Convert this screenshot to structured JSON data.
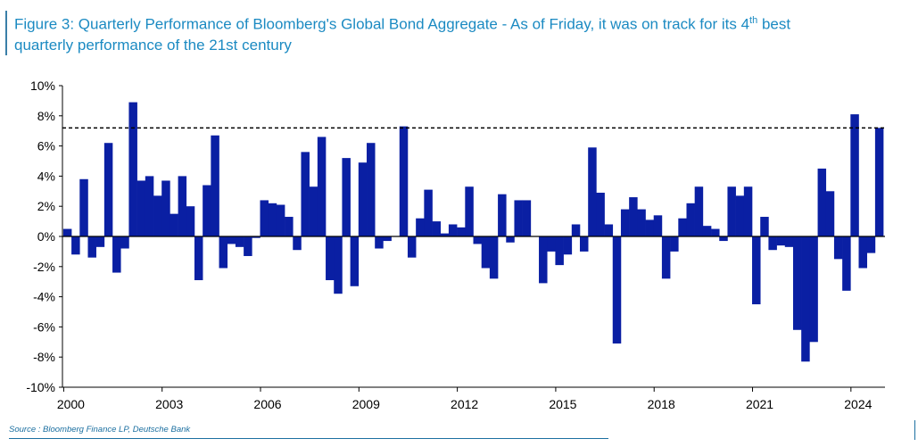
{
  "title": {
    "line1": "Figure 3: Quarterly Performance of Bloomberg's Global Bond Aggregate - As of Friday, it was on track for its 4",
    "superscript": "th",
    "line1_end": " best",
    "line2": "quarterly performance of the 21st century"
  },
  "source": "Source : Bloomberg Finance LP, Deutsche Bank",
  "colors": {
    "bar": "#0a1fa3",
    "title": "#1b8ac2",
    "axis": "#000000",
    "reference_line": "#000000"
  },
  "chart_data": {
    "type": "bar",
    "ylim": [
      -10,
      10
    ],
    "yticks": [
      -10,
      -8,
      -6,
      -4,
      -2,
      0,
      2,
      4,
      6,
      8,
      10
    ],
    "ytick_labels": [
      "-10%",
      "-8%",
      "-6%",
      "-4%",
      "-2%",
      "0%",
      "2%",
      "4%",
      "6%",
      "8%",
      "10%"
    ],
    "xtick_labels": [
      "2000",
      "2003",
      "2006",
      "2009",
      "2012",
      "2015",
      "2018",
      "2021",
      "2024"
    ],
    "xtick_years": [
      2000,
      2003,
      2006,
      2009,
      2012,
      2015,
      2018,
      2021,
      2024
    ],
    "reference_line": {
      "value": 7.2,
      "style": "dashed"
    },
    "start": "2000 Q1",
    "values": [
      0.5,
      -1.2,
      3.8,
      -1.4,
      -0.7,
      6.2,
      -2.4,
      -0.8,
      8.9,
      3.7,
      4.0,
      2.7,
      3.7,
      1.5,
      4.0,
      2.0,
      -2.9,
      3.4,
      6.7,
      -2.1,
      -0.5,
      -0.7,
      -1.3,
      -0.1,
      2.4,
      2.2,
      2.1,
      1.3,
      -0.9,
      5.6,
      3.3,
      6.6,
      -2.9,
      -3.8,
      5.2,
      -3.3,
      4.9,
      6.2,
      -0.8,
      -0.3,
      0.0,
      7.3,
      -1.4,
      1.2,
      3.1,
      1.0,
      0.2,
      0.8,
      0.6,
      3.3,
      -0.5,
      -2.1,
      -2.8,
      2.8,
      -0.4,
      2.4,
      2.4,
      0.0,
      -3.1,
      -1.0,
      -1.9,
      -1.2,
      0.8,
      -1.0,
      5.9,
      2.9,
      0.8,
      -7.1,
      1.8,
      2.6,
      1.8,
      1.1,
      1.4,
      -2.8,
      -1.0,
      1.2,
      2.2,
      3.3,
      0.7,
      0.5,
      -0.3,
      3.3,
      2.7,
      3.3,
      -4.5,
      1.3,
      -0.9,
      -0.6,
      -0.7,
      -6.2,
      -8.3,
      -7.0,
      4.5,
      3.0,
      -1.5,
      -3.6,
      8.1,
      -2.1,
      -1.1,
      7.2
    ]
  }
}
